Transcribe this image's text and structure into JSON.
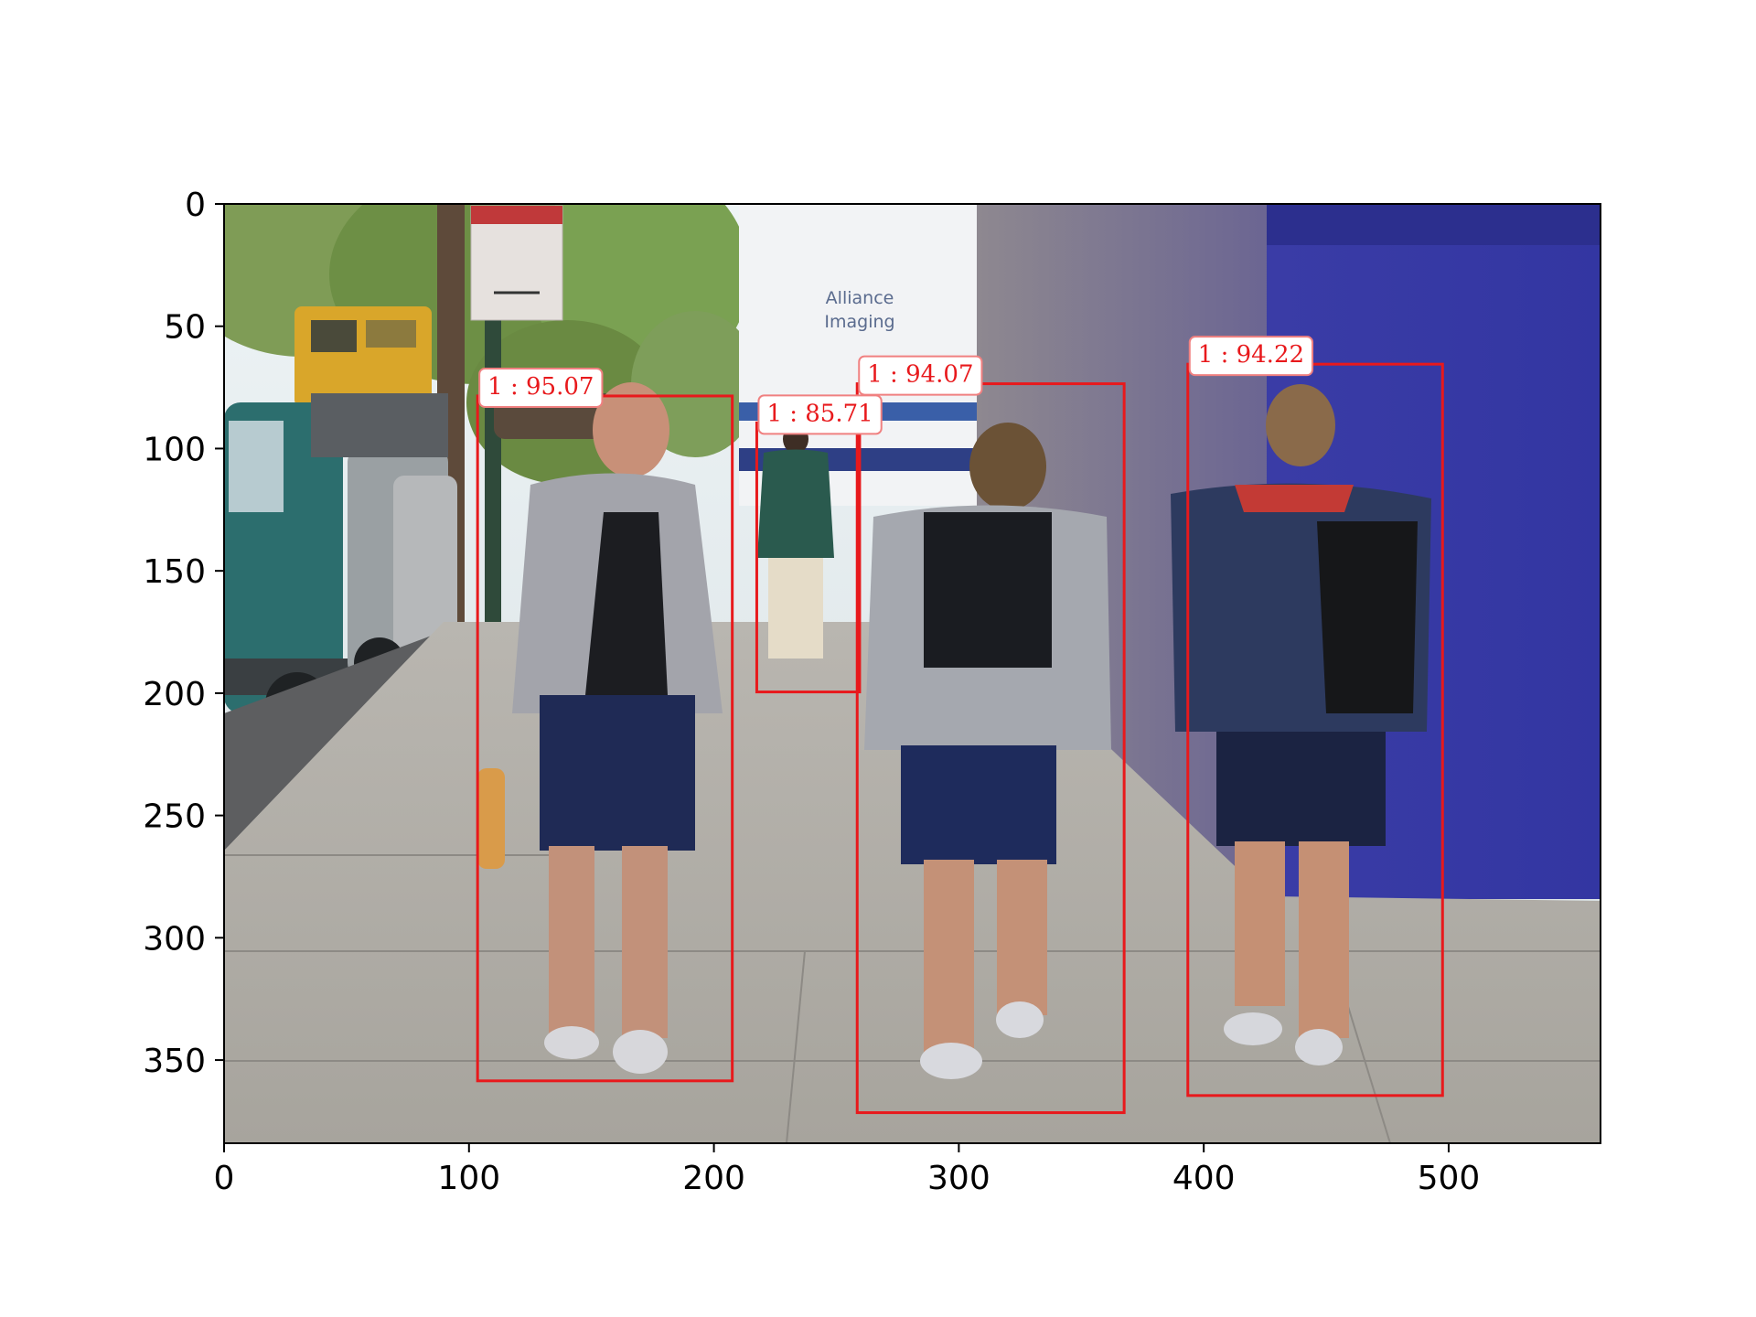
{
  "axes": {
    "x_ticks": [
      "0",
      "100",
      "200",
      "300",
      "400",
      "500"
    ],
    "y_ticks": [
      "0",
      "50",
      "100",
      "150",
      "200",
      "250",
      "300",
      "350"
    ],
    "x_range": [
      0,
      562
    ],
    "y_range": [
      0,
      384
    ]
  },
  "scene": {
    "sign_text": [
      "Alliance",
      "Imaging"
    ]
  },
  "detections": [
    {
      "label": "1 : 95.07",
      "x1": 103.5,
      "y1": 78.5,
      "x2": 207.5,
      "y2": 358.5
    },
    {
      "label": "1 : 85.71",
      "x1": 217.5,
      "y1": 89.5,
      "x2": 259.5,
      "y2": 199.5
    },
    {
      "label": "1 : 94.07",
      "x1": 258.5,
      "y1": 73.5,
      "x2": 367.5,
      "y2": 371.5
    },
    {
      "label": "1 : 94.22",
      "x1": 393.5,
      "y1": 65.5,
      "x2": 497.5,
      "y2": 364.5
    }
  ],
  "colors": {
    "box": "#e8191c",
    "label_text": "#e8191c",
    "label_bg": "#ffffff",
    "label_border": "#f08080",
    "axis": "#000000"
  }
}
